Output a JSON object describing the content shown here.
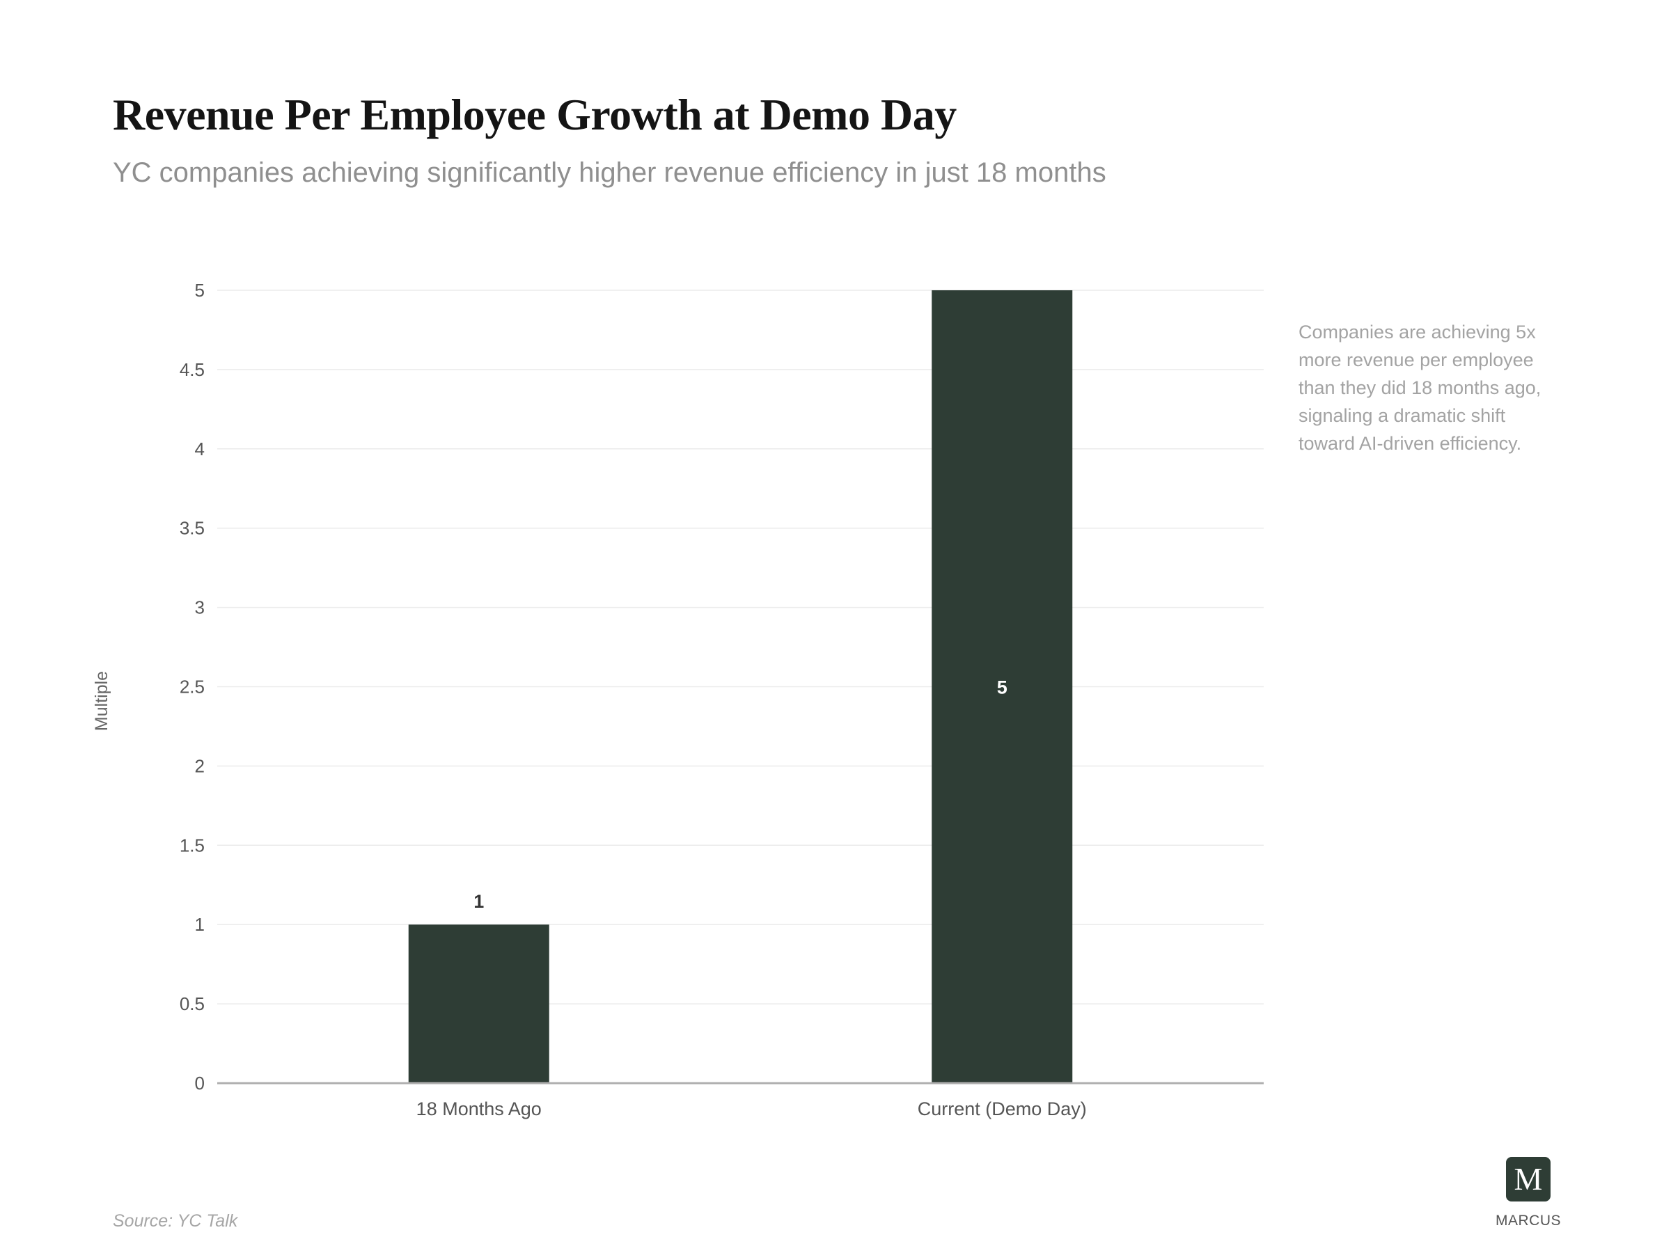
{
  "title": "Revenue Per Employee Growth at Demo Day",
  "subtitle": "YC companies achieving significantly higher revenue efficiency in just 18 months",
  "annotation": "Companies are achieving 5x more revenue per employee than they did 18 months ago, signaling a dramatic shift toward AI-driven efficiency.",
  "source": "Source: YC Talk",
  "brand": {
    "logo_letter": "M",
    "name": "MARCUS"
  },
  "colors": {
    "bar": "#2e3d35",
    "gridline": "#ebebeb",
    "axis": "#b0b0b0"
  },
  "chart_data": {
    "type": "bar",
    "categories": [
      "18 Months Ago",
      "Current (Demo Day)"
    ],
    "values": [
      1,
      5
    ],
    "data_labels": [
      "1",
      "5"
    ],
    "title": "Revenue Per Employee Growth at Demo Day",
    "xlabel": "",
    "ylabel": "Multiple",
    "ylim": [
      0,
      5
    ],
    "yticks": [
      0,
      0.5,
      1,
      1.5,
      2,
      2.5,
      3,
      3.5,
      4,
      4.5,
      5
    ],
    "grid": true,
    "legend": "none"
  }
}
